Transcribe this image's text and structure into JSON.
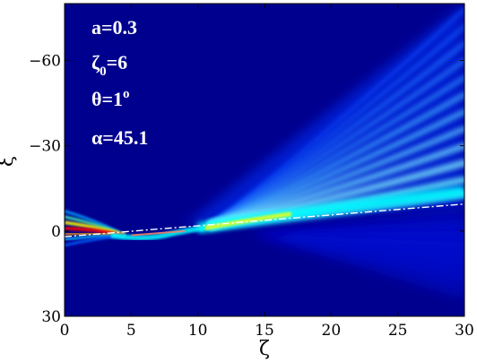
{
  "chart_data": {
    "type": "heatmap",
    "title": "",
    "xlabel": "ζ",
    "ylabel": "ξ",
    "xlim": [
      0,
      30
    ],
    "ylim": [
      30,
      -80
    ],
    "y_axis_inverted": true,
    "x_ticks": [
      "0",
      "5",
      "10",
      "15",
      "20",
      "25",
      "30"
    ],
    "y_ticks": [
      "−60",
      "−30",
      "0",
      "30"
    ],
    "y_tick_values": [
      -60,
      -30,
      0,
      30
    ],
    "colormap": "jet",
    "grid": false,
    "annotations": [
      {
        "id": "a",
        "text": "a=0.3"
      },
      {
        "id": "zeta0",
        "base": "ζ",
        "sub": "0",
        "rest": "=6"
      },
      {
        "id": "theta",
        "base": "θ=1",
        "sup": "o"
      },
      {
        "id": "alpha",
        "text": "α=45.1"
      }
    ],
    "reference_line": {
      "style": "dash-dot",
      "color": "#ffffff",
      "from": [
        0,
        2
      ],
      "to": [
        30,
        -9.5
      ]
    },
    "colors": {
      "background": "#00008f",
      "high": "#ff0000",
      "mid": "#ffff00",
      "low": "#00ffff"
    }
  }
}
